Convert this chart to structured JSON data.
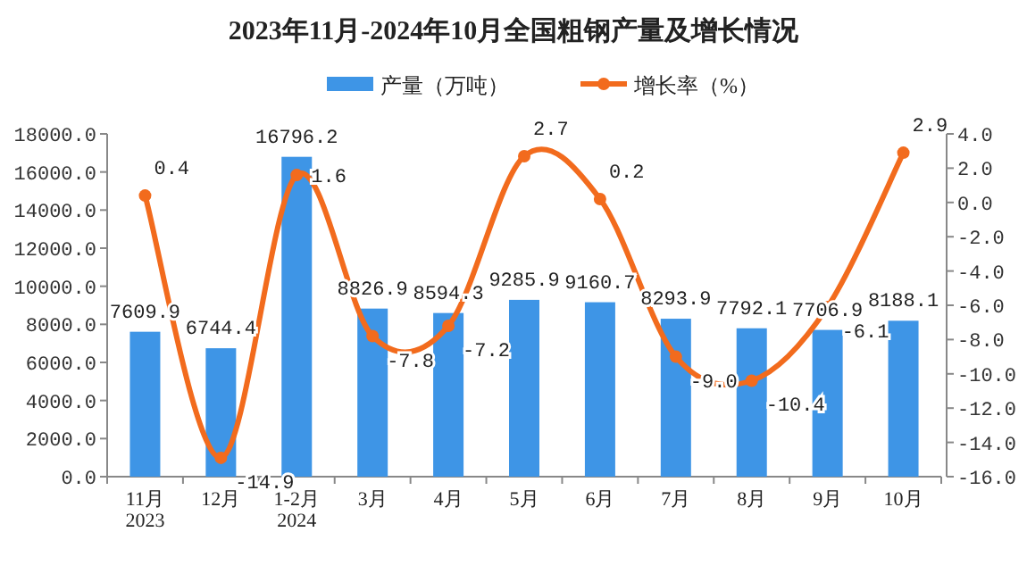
{
  "chart_data": {
    "type": "bar",
    "title": "2023年11月-2024年10月全国粗钢产量及增长情况",
    "categories": [
      "11月\n2023",
      "12月",
      "1-2月\n2024",
      "3月",
      "4月",
      "5月",
      "6月",
      "7月",
      "8月",
      "9月",
      "10月"
    ],
    "series": [
      {
        "name": "产量（万吨）",
        "color": "#3e95e6",
        "values": [
          7609.9,
          6744.4,
          16796.2,
          8826.9,
          8594.3,
          9285.9,
          9160.7,
          8293.9,
          7792.1,
          7706.9,
          8188.1
        ]
      },
      {
        "name": "增长率（%）",
        "type": "line",
        "axis": "y2",
        "color": "#f26b1d",
        "marker": "circle",
        "values": [
          0.4,
          -14.9,
          1.6,
          -7.8,
          -7.2,
          2.7,
          0.2,
          -9.0,
          -10.4,
          -6.1,
          2.9
        ],
        "value_labels": [
          "0.4",
          "-14.9",
          "1.6",
          "-7.8",
          "-7.2",
          "2.7",
          "0.2",
          "-9.0",
          "-10.4",
          "-6.1",
          "2.9"
        ]
      }
    ],
    "ylim": [
      0,
      18000
    ],
    "yticks": [
      {
        "value": 0,
        "label": "0.0"
      },
      {
        "value": 2000,
        "label": "2000.0"
      },
      {
        "value": 4000,
        "label": "4000.0"
      },
      {
        "value": 6000,
        "label": "6000.0"
      },
      {
        "value": 8000,
        "label": "8000.0"
      },
      {
        "value": 10000,
        "label": "10000.0"
      },
      {
        "value": 12000,
        "label": "12000.0"
      },
      {
        "value": 14000,
        "label": "14000.0"
      },
      {
        "value": 16000,
        "label": "16000.0"
      },
      {
        "value": 18000,
        "label": "18000.0"
      }
    ],
    "y2lim": [
      -16,
      4
    ],
    "y2ticks": [
      {
        "value": -16,
        "label": "-16.0"
      },
      {
        "value": -14,
        "label": "-14.0"
      },
      {
        "value": -12,
        "label": "-12.0"
      },
      {
        "value": -10,
        "label": "-10.0"
      },
      {
        "value": -8,
        "label": "-8.0"
      },
      {
        "value": -6,
        "label": "-6.0"
      },
      {
        "value": -4,
        "label": "-4.0"
      },
      {
        "value": -2,
        "label": "-2.0"
      },
      {
        "value": 0,
        "label": "0.0"
      },
      {
        "value": 2,
        "label": "2.0"
      },
      {
        "value": 4,
        "label": "4.0"
      }
    ],
    "data_labels": true,
    "legend": "top",
    "grid": false
  }
}
